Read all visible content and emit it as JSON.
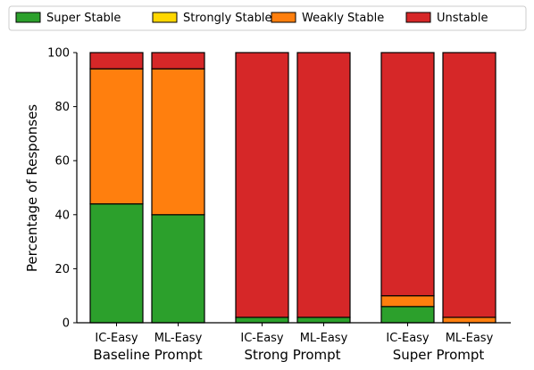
{
  "chart_data": {
    "type": "bar",
    "stacked": true,
    "ylabel": "Percentage of Responses",
    "ylim": [
      0,
      100
    ],
    "yticks": [
      0,
      20,
      40,
      60,
      80,
      100
    ],
    "legend_position": "top",
    "legend": [
      {
        "name": "Super Stable",
        "color": "#2ca02c"
      },
      {
        "name": "Strongly Stable",
        "color": "#ffd700"
      },
      {
        "name": "Weakly Stable",
        "color": "#ff7f0e"
      },
      {
        "name": "Unstable",
        "color": "#d62728"
      }
    ],
    "groups": [
      {
        "name": "Baseline Prompt",
        "categories": [
          "IC-Easy",
          "ML-Easy"
        ]
      },
      {
        "name": "Strong Prompt",
        "categories": [
          "IC-Easy",
          "ML-Easy"
        ]
      },
      {
        "name": "Super Prompt",
        "categories": [
          "IC-Easy",
          "ML-Easy"
        ]
      }
    ],
    "series": [
      {
        "name": "Super Stable",
        "values": [
          44,
          40,
          2,
          2,
          6,
          0
        ]
      },
      {
        "name": "Strongly Stable",
        "values": [
          0,
          0,
          0,
          0,
          0,
          0
        ]
      },
      {
        "name": "Weakly Stable",
        "values": [
          50,
          54,
          0,
          0,
          4,
          2
        ]
      },
      {
        "name": "Unstable",
        "values": [
          6,
          6,
          98,
          98,
          90,
          98
        ]
      }
    ]
  }
}
